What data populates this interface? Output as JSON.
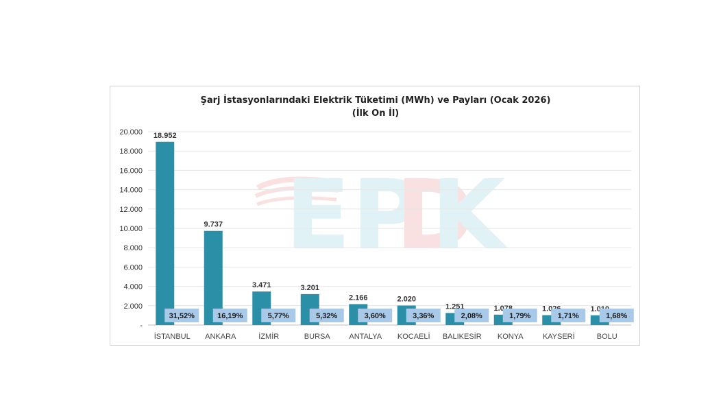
{
  "chart_data": {
    "type": "bar",
    "title": "Şarj İstasyonlarındaki Elektrik Tüketimi (MWh) ve Payları (Ocak 2026)",
    "subtitle": "(İlk On İl)",
    "categories": [
      "İSTANBUL",
      "ANKARA",
      "İZMİR",
      "BURSA",
      "ANTALYA",
      "KOCAELİ",
      "BALIKESİR",
      "KONYA",
      "KAYSERİ",
      "BOLU"
    ],
    "values": [
      18952,
      9737,
      3471,
      3201,
      2166,
      2020,
      1251,
      1078,
      1026,
      1010
    ],
    "value_labels": [
      "18.952",
      "9.737",
      "3.471",
      "3.201",
      "2.166",
      "2.020",
      "1.251",
      "1.078",
      "1.026",
      "1.010"
    ],
    "share_labels": [
      "31,52%",
      "16,19%",
      "5,77%",
      "5,32%",
      "3,60%",
      "3,36%",
      "2,08%",
      "1,79%",
      "1,71%",
      "1,68%"
    ],
    "ylim": [
      0,
      20000
    ],
    "y_ticks": [
      0,
      2000,
      4000,
      6000,
      8000,
      10000,
      12000,
      14000,
      16000,
      18000,
      20000
    ],
    "y_tick_labels": [
      "-",
      "2.000",
      "4.000",
      "6.000",
      "8.000",
      "10.000",
      "12.000",
      "14.000",
      "16.000",
      "18.000",
      "20.000"
    ],
    "xlabel": "",
    "ylabel": "",
    "grid": true,
    "bar_color": "#2b8fa8",
    "share_box_color": "#a9c9e8",
    "watermark": "EPDK"
  }
}
